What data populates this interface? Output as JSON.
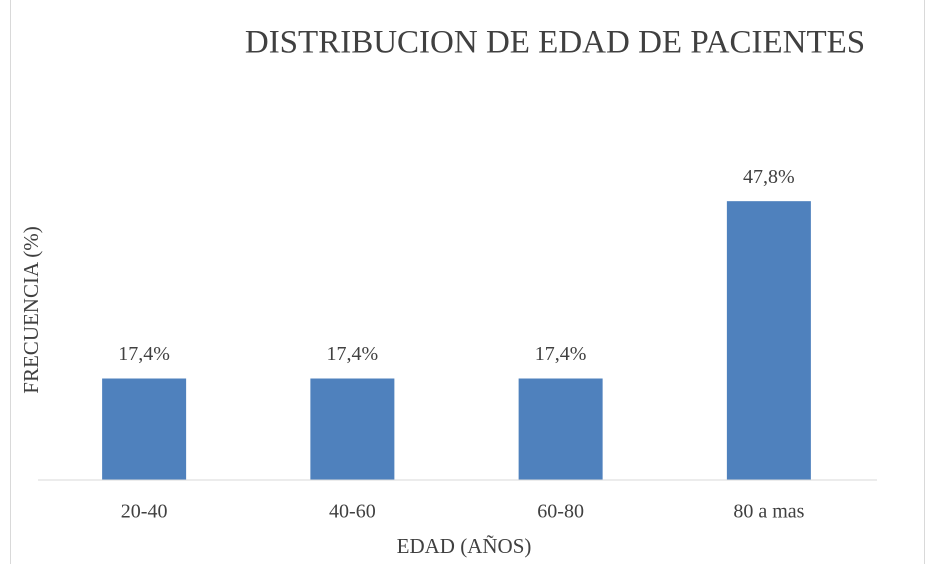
{
  "chart_data": {
    "type": "bar",
    "title": "DISTRIBUCION DE EDAD DE PACIENTES",
    "x_label": "EDAD (AÑOS)",
    "y_label": "FRECUENCIA (%)",
    "categories": [
      "20-40",
      "40-60",
      "60-80",
      "80 a mas"
    ],
    "values": [
      17.4,
      17.4,
      17.4,
      47.8
    ],
    "value_labels": [
      "17,4%",
      "17,4%",
      "17,4%",
      "47,8%"
    ],
    "color": "#4f81bd",
    "ylim": [
      0,
      60
    ]
  }
}
